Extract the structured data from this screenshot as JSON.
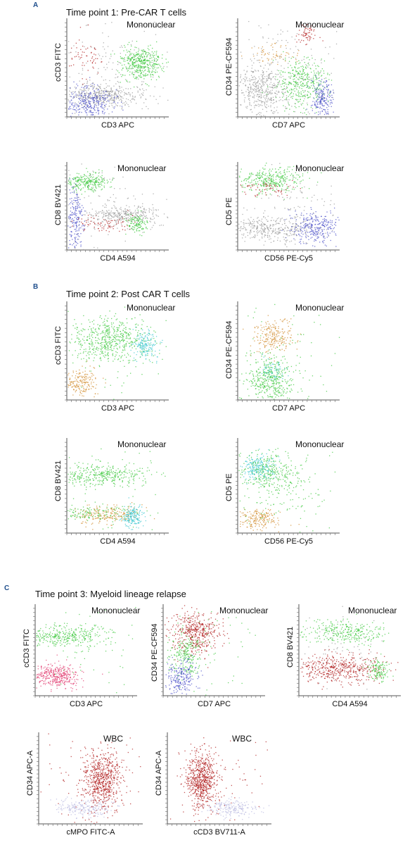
{
  "sections": [
    {
      "letter": "A",
      "title": "Time point 1: Pre-CAR T cells"
    },
    {
      "letter": "B",
      "title": "Time point 2: Post CAR T cells"
    },
    {
      "letter": "C",
      "title": "Time point 3: Myeloid lineage relapse"
    }
  ],
  "colors": {
    "green": "#3cc83c",
    "blue": "#4a4fc8",
    "gray": "#9a9a9a",
    "red": "#b01e1e",
    "orange": "#d08a2a",
    "cyan": "#3fc8d0",
    "pink": "#e0386e",
    "lavender": "#b8b8e0"
  },
  "chart_data": [
    {
      "type": "scatter",
      "gate": "Mononuclear",
      "xlabel": "CD3 APC",
      "ylabel": "cCD3 FITC",
      "populations": [
        "green",
        "blue",
        "gray",
        "red"
      ]
    },
    {
      "type": "scatter",
      "gate": "Mononuclear",
      "xlabel": "CD7 APC",
      "ylabel": "CD34 PE-CF594",
      "populations": [
        "green",
        "blue",
        "gray",
        "red",
        "orange"
      ]
    },
    {
      "type": "scatter",
      "gate": "Mononuclear",
      "xlabel": "CD4 A594",
      "ylabel": "CD8 BV421",
      "populations": [
        "green",
        "blue",
        "gray",
        "red"
      ]
    },
    {
      "type": "scatter",
      "gate": "Mononuclear",
      "xlabel": "CD56 PE-Cy5",
      "ylabel": "CD5 PE",
      "populations": [
        "green",
        "blue",
        "gray",
        "red"
      ]
    },
    {
      "type": "scatter",
      "gate": "Mononuclear",
      "xlabel": "CD3 APC",
      "ylabel": "cCD3 FITC",
      "populations": [
        "green",
        "cyan",
        "orange"
      ]
    },
    {
      "type": "scatter",
      "gate": "Mononuclear",
      "xlabel": "CD7 APC",
      "ylabel": "CD34 PE-CF594",
      "populations": [
        "green",
        "orange"
      ]
    },
    {
      "type": "scatter",
      "gate": "Mononuclear",
      "xlabel": "CD4 A594",
      "ylabel": "CD8 BV421",
      "populations": [
        "green",
        "cyan",
        "orange"
      ]
    },
    {
      "type": "scatter",
      "gate": "Mononuclear",
      "xlabel": "CD56 PE-Cy5",
      "ylabel": "CD5 PE",
      "populations": [
        "green",
        "cyan",
        "orange"
      ]
    },
    {
      "type": "scatter",
      "gate": "Mononuclear",
      "xlabel": "CD3 APC",
      "ylabel": "cCD3 FITC",
      "populations": [
        "green",
        "pink"
      ]
    },
    {
      "type": "scatter",
      "gate": "Mononuclear",
      "xlabel": "CD7 APC",
      "ylabel": "CD34 PE-CF594",
      "populations": [
        "red",
        "green",
        "blue"
      ]
    },
    {
      "type": "scatter",
      "gate": "Mononuclear",
      "xlabel": "CD4 A594",
      "ylabel": "CD8 BV421",
      "populations": [
        "green",
        "red"
      ]
    },
    {
      "type": "scatter",
      "gate": "WBC",
      "xlabel": "cMPO FITC-A",
      "ylabel": "CD34 APC-A",
      "populations": [
        "red",
        "lavender"
      ]
    },
    {
      "type": "scatter",
      "gate": "WBC",
      "xlabel": "cCD3 BV711-A",
      "ylabel": "CD34 APC-A",
      "populations": [
        "red",
        "lavender"
      ]
    }
  ]
}
